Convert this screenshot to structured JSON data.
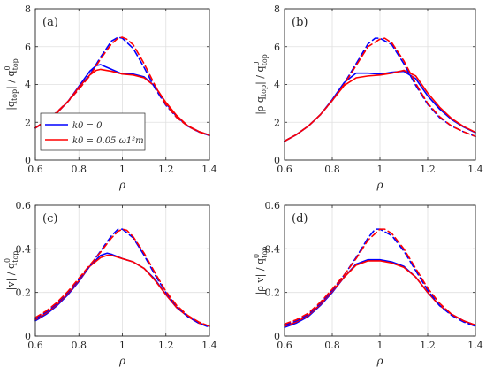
{
  "chart_data": [
    {
      "type": "line",
      "panel_label": "(a)",
      "ylabel": {
        "pre": "|q",
        "sub1": "top",
        "mid": "| / q",
        "sup": "0",
        "sub2": "top"
      },
      "xlabel": "ρ",
      "xlim": [
        0.6,
        1.4
      ],
      "ylim": [
        0,
        8
      ],
      "xticks": [
        "0.6",
        "0.8",
        "1",
        "1.2",
        "1.4"
      ],
      "yticks": [
        "0",
        "2",
        "4",
        "6",
        "8"
      ],
      "grid": true,
      "legend": {
        "placement": "bottom-left",
        "entries": [
          "k0 = 0",
          "k0 = 0.05 ω1²m"
        ]
      },
      "series": [
        {
          "color": "#0000ff",
          "style": "solid",
          "x": [
            0.6,
            0.65,
            0.7,
            0.75,
            0.8,
            0.85,
            0.88,
            0.9,
            0.95,
            1.0,
            1.05,
            1.1,
            1.15,
            1.2,
            1.25,
            1.3,
            1.35,
            1.4
          ],
          "y": [
            1.7,
            2.05,
            2.5,
            3.1,
            3.9,
            4.7,
            5.0,
            5.05,
            4.8,
            4.55,
            4.55,
            4.4,
            3.9,
            3.0,
            2.3,
            1.8,
            1.5,
            1.3
          ]
        },
        {
          "color": "#ff0000",
          "style": "solid",
          "x": [
            0.6,
            0.65,
            0.7,
            0.75,
            0.8,
            0.85,
            0.88,
            0.9,
            0.95,
            1.0,
            1.05,
            1.1,
            1.15,
            1.2,
            1.25,
            1.3,
            1.35,
            1.4
          ],
          "y": [
            1.7,
            2.05,
            2.5,
            3.1,
            3.85,
            4.5,
            4.75,
            4.8,
            4.7,
            4.55,
            4.5,
            4.35,
            3.9,
            3.05,
            2.35,
            1.82,
            1.52,
            1.32
          ]
        },
        {
          "color": "#0000ff",
          "style": "dashed",
          "x": [
            0.6,
            0.65,
            0.7,
            0.75,
            0.8,
            0.85,
            0.9,
            0.95,
            0.98,
            1.0,
            1.05,
            1.1,
            1.15,
            1.2,
            1.25,
            1.3,
            1.35,
            1.4
          ],
          "y": [
            1.7,
            2.1,
            2.55,
            3.1,
            3.75,
            4.5,
            5.45,
            6.3,
            6.5,
            6.45,
            5.9,
            4.9,
            3.8,
            2.9,
            2.25,
            1.8,
            1.5,
            1.3
          ]
        },
        {
          "color": "#ff0000",
          "style": "dashed",
          "x": [
            0.6,
            0.65,
            0.7,
            0.75,
            0.8,
            0.85,
            0.9,
            0.95,
            0.98,
            1.0,
            1.02,
            1.05,
            1.1,
            1.15,
            1.2,
            1.25,
            1.3,
            1.35,
            1.4
          ],
          "y": [
            1.7,
            2.1,
            2.55,
            3.1,
            3.75,
            4.45,
            5.35,
            6.15,
            6.45,
            6.5,
            6.4,
            6.1,
            5.1,
            3.95,
            2.95,
            2.25,
            1.8,
            1.5,
            1.3
          ]
        }
      ]
    },
    {
      "type": "line",
      "panel_label": "(b)",
      "ylabel": {
        "pre": "|ρ q",
        "sub1": "top",
        "mid": "| / q",
        "sup": "0",
        "sub2": "top"
      },
      "xlabel": "ρ",
      "xlim": [
        0.6,
        1.4
      ],
      "ylim": [
        0,
        8
      ],
      "xticks": [
        "0.6",
        "0.8",
        "1",
        "1.2",
        "1.4"
      ],
      "yticks": [
        "0",
        "2",
        "4",
        "6",
        "8"
      ],
      "grid": true,
      "series": [
        {
          "color": "#0000ff",
          "style": "solid",
          "x": [
            0.6,
            0.65,
            0.7,
            0.75,
            0.8,
            0.85,
            0.9,
            0.95,
            1.0,
            1.05,
            1.1,
            1.15,
            1.2,
            1.25,
            1.3,
            1.35,
            1.4
          ],
          "y": [
            1.0,
            1.35,
            1.8,
            2.4,
            3.2,
            4.1,
            4.6,
            4.6,
            4.55,
            4.65,
            4.7,
            4.3,
            3.4,
            2.7,
            2.15,
            1.75,
            1.45
          ]
        },
        {
          "color": "#ff0000",
          "style": "solid",
          "x": [
            0.6,
            0.65,
            0.7,
            0.75,
            0.8,
            0.85,
            0.9,
            0.95,
            1.0,
            1.05,
            1.1,
            1.15,
            1.2,
            1.25,
            1.3,
            1.35,
            1.4
          ],
          "y": [
            1.0,
            1.35,
            1.8,
            2.4,
            3.15,
            3.95,
            4.35,
            4.45,
            4.5,
            4.6,
            4.75,
            4.45,
            3.55,
            2.8,
            2.2,
            1.78,
            1.47
          ]
        },
        {
          "color": "#0000ff",
          "style": "dashed",
          "x": [
            0.6,
            0.65,
            0.7,
            0.75,
            0.8,
            0.85,
            0.9,
            0.95,
            0.98,
            1.0,
            1.05,
            1.1,
            1.15,
            1.2,
            1.25,
            1.3,
            1.35,
            1.4
          ],
          "y": [
            1.0,
            1.35,
            1.8,
            2.4,
            3.15,
            4.05,
            5.1,
            6.15,
            6.45,
            6.45,
            6.1,
            5.1,
            3.95,
            2.95,
            2.25,
            1.8,
            1.5,
            1.25
          ]
        },
        {
          "color": "#ff0000",
          "style": "dashed",
          "x": [
            0.6,
            0.65,
            0.7,
            0.75,
            0.8,
            0.85,
            0.9,
            0.95,
            1.0,
            1.02,
            1.05,
            1.1,
            1.15,
            1.2,
            1.25,
            1.3,
            1.35,
            1.4
          ],
          "y": [
            1.0,
            1.35,
            1.8,
            2.4,
            3.15,
            4.0,
            5.0,
            6.0,
            6.4,
            6.45,
            6.2,
            5.25,
            4.05,
            3.0,
            2.3,
            1.8,
            1.5,
            1.25
          ]
        }
      ]
    },
    {
      "type": "line",
      "panel_label": "(c)",
      "ylabel": {
        "pre": "|v| / q",
        "sub1": "",
        "mid": "",
        "sup": "0",
        "sub2": "top"
      },
      "xlabel": "ρ",
      "xlim": [
        0.6,
        1.4
      ],
      "ylim": [
        0,
        0.6
      ],
      "xticks": [
        "0.6",
        "0.8",
        "1",
        "1.2",
        "1.4"
      ],
      "yticks": [
        "0",
        "0.2",
        "0.4",
        "0.6"
      ],
      "grid": true,
      "series": [
        {
          "color": "#0000ff",
          "style": "solid",
          "x": [
            0.6,
            0.65,
            0.7,
            0.75,
            0.8,
            0.85,
            0.9,
            0.93,
            0.95,
            1.0,
            1.05,
            1.1,
            1.15,
            1.2,
            1.25,
            1.3,
            1.35,
            1.4
          ],
          "y": [
            0.07,
            0.1,
            0.14,
            0.19,
            0.25,
            0.32,
            0.37,
            0.38,
            0.375,
            0.355,
            0.34,
            0.31,
            0.26,
            0.19,
            0.13,
            0.09,
            0.06,
            0.045
          ]
        },
        {
          "color": "#ff0000",
          "style": "solid",
          "x": [
            0.6,
            0.65,
            0.7,
            0.75,
            0.8,
            0.85,
            0.9,
            0.93,
            0.95,
            1.0,
            1.05,
            1.1,
            1.15,
            1.2,
            1.25,
            1.3,
            1.35,
            1.4
          ],
          "y": [
            0.075,
            0.105,
            0.145,
            0.195,
            0.255,
            0.32,
            0.36,
            0.37,
            0.37,
            0.355,
            0.34,
            0.31,
            0.255,
            0.19,
            0.13,
            0.09,
            0.06,
            0.045
          ]
        },
        {
          "color": "#0000ff",
          "style": "dashed",
          "x": [
            0.6,
            0.65,
            0.7,
            0.75,
            0.8,
            0.85,
            0.9,
            0.95,
            0.98,
            1.0,
            1.05,
            1.1,
            1.15,
            1.2,
            1.25,
            1.3,
            1.35,
            1.4
          ],
          "y": [
            0.08,
            0.11,
            0.15,
            0.2,
            0.26,
            0.32,
            0.39,
            0.46,
            0.49,
            0.49,
            0.45,
            0.37,
            0.28,
            0.2,
            0.135,
            0.09,
            0.06,
            0.04
          ]
        },
        {
          "color": "#ff0000",
          "style": "dashed",
          "x": [
            0.6,
            0.65,
            0.7,
            0.75,
            0.8,
            0.85,
            0.9,
            0.95,
            0.98,
            1.0,
            1.02,
            1.05,
            1.1,
            1.15,
            1.2,
            1.25,
            1.3,
            1.35,
            1.4
          ],
          "y": [
            0.085,
            0.115,
            0.155,
            0.205,
            0.265,
            0.325,
            0.385,
            0.45,
            0.48,
            0.49,
            0.485,
            0.455,
            0.38,
            0.29,
            0.205,
            0.14,
            0.095,
            0.065,
            0.045
          ]
        }
      ]
    },
    {
      "type": "line",
      "panel_label": "(d)",
      "ylabel": {
        "pre": "|ρ v| / q",
        "sub1": "",
        "mid": "",
        "sup": "0",
        "sub2": "top"
      },
      "xlabel": "ρ",
      "xlim": [
        0.6,
        1.4
      ],
      "ylim": [
        0,
        0.6
      ],
      "xticks": [
        "0.6",
        "0.8",
        "1",
        "1.2",
        "1.4"
      ],
      "yticks": [
        "0",
        "0.2",
        "0.4",
        "0.6"
      ],
      "grid": true,
      "series": [
        {
          "color": "#0000ff",
          "style": "solid",
          "x": [
            0.6,
            0.65,
            0.7,
            0.75,
            0.8,
            0.85,
            0.9,
            0.95,
            1.0,
            1.05,
            1.1,
            1.15,
            1.2,
            1.25,
            1.3,
            1.35,
            1.4
          ],
          "y": [
            0.04,
            0.06,
            0.09,
            0.14,
            0.2,
            0.27,
            0.33,
            0.35,
            0.35,
            0.34,
            0.32,
            0.27,
            0.2,
            0.14,
            0.1,
            0.07,
            0.05
          ]
        },
        {
          "color": "#ff0000",
          "style": "solid",
          "x": [
            0.6,
            0.65,
            0.7,
            0.75,
            0.8,
            0.85,
            0.9,
            0.95,
            1.0,
            1.05,
            1.1,
            1.15,
            1.2,
            1.25,
            1.3,
            1.35,
            1.4
          ],
          "y": [
            0.045,
            0.065,
            0.095,
            0.145,
            0.205,
            0.27,
            0.325,
            0.345,
            0.345,
            0.335,
            0.315,
            0.27,
            0.2,
            0.14,
            0.1,
            0.07,
            0.05
          ]
        },
        {
          "color": "#0000ff",
          "style": "dashed",
          "x": [
            0.6,
            0.65,
            0.7,
            0.75,
            0.8,
            0.85,
            0.9,
            0.95,
            0.98,
            1.0,
            1.05,
            1.1,
            1.15,
            1.2,
            1.25,
            1.3,
            1.35,
            1.4
          ],
          "y": [
            0.05,
            0.07,
            0.1,
            0.15,
            0.21,
            0.28,
            0.36,
            0.45,
            0.49,
            0.49,
            0.46,
            0.39,
            0.3,
            0.21,
            0.14,
            0.095,
            0.065,
            0.045
          ]
        },
        {
          "color": "#ff0000",
          "style": "dashed",
          "x": [
            0.6,
            0.65,
            0.7,
            0.75,
            0.8,
            0.85,
            0.9,
            0.95,
            1.0,
            1.02,
            1.05,
            1.1,
            1.15,
            1.2,
            1.25,
            1.3,
            1.35,
            1.4
          ],
          "y": [
            0.055,
            0.075,
            0.105,
            0.155,
            0.215,
            0.28,
            0.355,
            0.44,
            0.49,
            0.49,
            0.47,
            0.4,
            0.31,
            0.22,
            0.15,
            0.1,
            0.07,
            0.05
          ]
        }
      ]
    }
  ]
}
